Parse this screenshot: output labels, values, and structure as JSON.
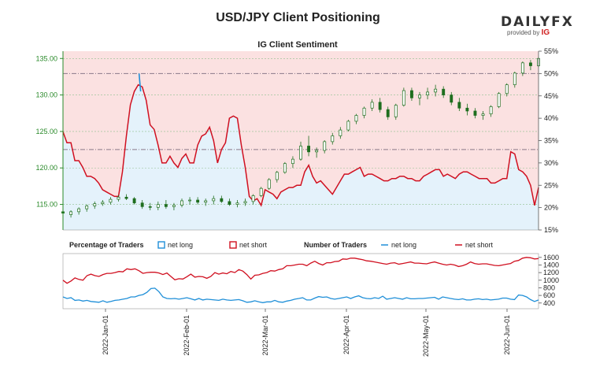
{
  "title": "USD/JPY Client Positioning",
  "subtitle": "IG Client Sentiment",
  "logo": {
    "main": "DAILYFX",
    "provided_by": "provided by",
    "brand": "IG"
  },
  "colors": {
    "net_long": "#1f8fd8",
    "net_short": "#d01020",
    "price": "#2a8a2a",
    "long_fill": "#e4f2fb",
    "short_fill": "#fbe1e1"
  },
  "legend": {
    "percentage_title": "Percentage of Traders",
    "number_title": "Number of Traders",
    "net_long": "net long",
    "net_short": "net short"
  },
  "chart_data": [
    {
      "type": "area",
      "name": "IG Client Sentiment",
      "price_axis": {
        "ticks": [
          115.0,
          120.0,
          125.0,
          130.0,
          135.0
        ],
        "labels": [
          "115.00",
          "120.00",
          "125.00",
          "130.00",
          "135.00"
        ],
        "range": [
          111.5,
          136.0
        ]
      },
      "pct_axis": {
        "ticks": [
          15,
          20,
          25,
          30,
          35,
          40,
          45,
          50,
          55
        ],
        "labels": [
          "15%",
          "20%",
          "25%",
          "30%",
          "35%",
          "40%",
          "45%",
          "50%",
          "55%"
        ],
        "range": [
          15,
          55
        ]
      },
      "x_labels": [
        "2022-Jan-01",
        "2022-Feb-01",
        "2022-Mar-01",
        "2022-Apr-01",
        "2022-May-01",
        "2022-Jun-01"
      ],
      "reference_lines": [
        50,
        33
      ],
      "net_short_pct": [
        37,
        34.5,
        34.5,
        30.5,
        30.5,
        29,
        27,
        27,
        26.5,
        25.5,
        24,
        23.5,
        23,
        22.5,
        22.5,
        28,
        36,
        43,
        46,
        47.5,
        47,
        44,
        38.5,
        37.5,
        34,
        30,
        30,
        31.5,
        30,
        29,
        31,
        32,
        30,
        30,
        34,
        36,
        36.5,
        38,
        35,
        30,
        33,
        34.5,
        40,
        40.5,
        40,
        34,
        29,
        22.5,
        21.5,
        22,
        20.5,
        24,
        23.5,
        23,
        22,
        23.5,
        24,
        24.5,
        24.5,
        25,
        25,
        28,
        29.5,
        27,
        25.5,
        26,
        25,
        24,
        23,
        24.5,
        26,
        27.5,
        27.5,
        28,
        28.5,
        29,
        27,
        27.5,
        27.5,
        27,
        26.5,
        26,
        26,
        26.5,
        26.5,
        27,
        27,
        26.5,
        26.5,
        26,
        26,
        27,
        27.5,
        28,
        28.5,
        28.5,
        27,
        27.5,
        27,
        26.5,
        27.5,
        28,
        28,
        27.5,
        27,
        26.5,
        26.5,
        26.5,
        25.5,
        25.5,
        26,
        26.5,
        26.5,
        32.5,
        32,
        28.5,
        28,
        27,
        25,
        20.5,
        24.5
      ],
      "price_ohlc": [
        {
          "i": 0,
          "o": 114.0,
          "h": 114.4,
          "l": 113.4,
          "c": 113.8
        },
        {
          "i": 2,
          "o": 113.6,
          "h": 114.2,
          "l": 113.2,
          "c": 114.0
        },
        {
          "i": 4,
          "o": 114.0,
          "h": 114.6,
          "l": 113.6,
          "c": 114.4
        },
        {
          "i": 6,
          "o": 114.4,
          "h": 115.0,
          "l": 114.0,
          "c": 114.8
        },
        {
          "i": 8,
          "o": 114.8,
          "h": 115.4,
          "l": 114.4,
          "c": 115.1
        },
        {
          "i": 10,
          "o": 115.1,
          "h": 115.6,
          "l": 114.8,
          "c": 115.3
        },
        {
          "i": 12,
          "o": 115.3,
          "h": 116.0,
          "l": 115.0,
          "c": 115.7
        },
        {
          "i": 14,
          "o": 115.7,
          "h": 116.3,
          "l": 115.4,
          "c": 116.0
        },
        {
          "i": 16,
          "o": 116.0,
          "h": 116.4,
          "l": 115.6,
          "c": 115.8
        },
        {
          "i": 18,
          "o": 115.8,
          "h": 116.0,
          "l": 115.0,
          "c": 115.2
        },
        {
          "i": 20,
          "o": 115.2,
          "h": 115.6,
          "l": 114.4,
          "c": 114.7
        },
        {
          "i": 22,
          "o": 114.7,
          "h": 115.2,
          "l": 114.2,
          "c": 114.6
        },
        {
          "i": 24,
          "o": 114.6,
          "h": 115.4,
          "l": 114.2,
          "c": 115.0
        },
        {
          "i": 26,
          "o": 115.0,
          "h": 115.6,
          "l": 114.4,
          "c": 114.7
        },
        {
          "i": 28,
          "o": 114.7,
          "h": 115.2,
          "l": 114.2,
          "c": 114.9
        },
        {
          "i": 30,
          "o": 114.9,
          "h": 115.8,
          "l": 114.6,
          "c": 115.5
        },
        {
          "i": 32,
          "o": 115.5,
          "h": 116.0,
          "l": 115.0,
          "c": 115.6
        },
        {
          "i": 34,
          "o": 115.6,
          "h": 116.0,
          "l": 115.0,
          "c": 115.3
        },
        {
          "i": 36,
          "o": 115.3,
          "h": 115.8,
          "l": 114.8,
          "c": 115.5
        },
        {
          "i": 38,
          "o": 115.5,
          "h": 116.2,
          "l": 115.0,
          "c": 115.8
        },
        {
          "i": 40,
          "o": 115.8,
          "h": 116.2,
          "l": 115.2,
          "c": 115.4
        },
        {
          "i": 42,
          "o": 115.4,
          "h": 115.8,
          "l": 114.8,
          "c": 115.0
        },
        {
          "i": 44,
          "o": 115.0,
          "h": 115.6,
          "l": 114.6,
          "c": 115.2
        },
        {
          "i": 46,
          "o": 115.2,
          "h": 115.8,
          "l": 114.8,
          "c": 115.4
        },
        {
          "i": 48,
          "o": 115.4,
          "h": 116.4,
          "l": 115.0,
          "c": 116.2
        },
        {
          "i": 50,
          "o": 116.2,
          "h": 117.4,
          "l": 116.0,
          "c": 117.2
        },
        {
          "i": 52,
          "o": 117.2,
          "h": 118.6,
          "l": 117.0,
          "c": 118.4
        },
        {
          "i": 54,
          "o": 118.4,
          "h": 119.6,
          "l": 118.0,
          "c": 119.4
        },
        {
          "i": 56,
          "o": 119.4,
          "h": 120.8,
          "l": 119.2,
          "c": 120.6
        },
        {
          "i": 58,
          "o": 120.6,
          "h": 121.6,
          "l": 120.0,
          "c": 121.2
        },
        {
          "i": 60,
          "o": 121.2,
          "h": 123.6,
          "l": 121.0,
          "c": 123.0
        },
        {
          "i": 62,
          "o": 123.0,
          "h": 124.4,
          "l": 121.6,
          "c": 122.2
        },
        {
          "i": 64,
          "o": 122.2,
          "h": 122.8,
          "l": 121.4,
          "c": 122.4
        },
        {
          "i": 66,
          "o": 122.4,
          "h": 123.8,
          "l": 122.0,
          "c": 123.6
        },
        {
          "i": 68,
          "o": 123.6,
          "h": 124.8,
          "l": 123.2,
          "c": 124.4
        },
        {
          "i": 70,
          "o": 124.4,
          "h": 125.6,
          "l": 124.0,
          "c": 125.2
        },
        {
          "i": 72,
          "o": 125.2,
          "h": 126.6,
          "l": 125.0,
          "c": 126.4
        },
        {
          "i": 74,
          "o": 126.4,
          "h": 127.4,
          "l": 126.0,
          "c": 127.2
        },
        {
          "i": 76,
          "o": 127.2,
          "h": 128.4,
          "l": 126.8,
          "c": 128.2
        },
        {
          "i": 78,
          "o": 128.2,
          "h": 129.4,
          "l": 127.8,
          "c": 129.0
        },
        {
          "i": 80,
          "o": 129.0,
          "h": 129.6,
          "l": 127.6,
          "c": 128.0
        },
        {
          "i": 82,
          "o": 128.0,
          "h": 128.4,
          "l": 126.6,
          "c": 127.0
        },
        {
          "i": 84,
          "o": 127.0,
          "h": 128.8,
          "l": 126.6,
          "c": 128.6
        },
        {
          "i": 86,
          "o": 128.6,
          "h": 131.0,
          "l": 128.4,
          "c": 130.6
        },
        {
          "i": 88,
          "o": 130.6,
          "h": 131.0,
          "l": 129.2,
          "c": 129.6
        },
        {
          "i": 90,
          "o": 129.6,
          "h": 130.4,
          "l": 128.6,
          "c": 130.0
        },
        {
          "i": 92,
          "o": 130.0,
          "h": 131.0,
          "l": 129.4,
          "c": 130.4
        },
        {
          "i": 94,
          "o": 130.4,
          "h": 131.4,
          "l": 129.8,
          "c": 130.8
        },
        {
          "i": 96,
          "o": 130.8,
          "h": 131.2,
          "l": 129.6,
          "c": 130.0
        },
        {
          "i": 98,
          "o": 130.0,
          "h": 130.4,
          "l": 128.6,
          "c": 129.0
        },
        {
          "i": 100,
          "o": 129.0,
          "h": 129.6,
          "l": 127.8,
          "c": 128.2
        },
        {
          "i": 102,
          "o": 128.2,
          "h": 128.8,
          "l": 127.2,
          "c": 127.8
        },
        {
          "i": 104,
          "o": 127.8,
          "h": 128.2,
          "l": 126.8,
          "c": 127.2
        },
        {
          "i": 106,
          "o": 127.2,
          "h": 127.8,
          "l": 126.6,
          "c": 127.4
        },
        {
          "i": 108,
          "o": 127.4,
          "h": 128.6,
          "l": 127.0,
          "c": 128.4
        },
        {
          "i": 110,
          "o": 128.4,
          "h": 130.4,
          "l": 128.2,
          "c": 130.2
        },
        {
          "i": 112,
          "o": 130.2,
          "h": 131.6,
          "l": 129.8,
          "c": 131.4
        },
        {
          "i": 114,
          "o": 131.4,
          "h": 133.2,
          "l": 131.0,
          "c": 133.0
        },
        {
          "i": 116,
          "o": 133.0,
          "h": 134.6,
          "l": 132.6,
          "c": 134.4
        },
        {
          "i": 118,
          "o": 134.4,
          "h": 134.8,
          "l": 133.4,
          "c": 134.0
        },
        {
          "i": 120,
          "o": 134.0,
          "h": 135.2,
          "l": 133.8,
          "c": 135.0
        }
      ]
    },
    {
      "type": "line",
      "name": "Number of Traders",
      "y_axis": {
        "ticks": [
          400,
          600,
          800,
          1000,
          1200,
          1400,
          1600
        ],
        "labels": [
          "400",
          "600",
          "800",
          "1000",
          "1200",
          "1400",
          "1600"
        ],
        "range": [
          250,
          1700
        ]
      },
      "series": [
        {
          "name": "net long",
          "values": [
            560,
            520,
            540,
            470,
            480,
            450,
            470,
            440,
            430,
            420,
            460,
            420,
            440,
            470,
            480,
            500,
            520,
            560,
            560,
            600,
            620,
            680,
            780,
            790,
            700,
            560,
            520,
            510,
            520,
            500,
            520,
            540,
            510,
            480,
            520,
            480,
            500,
            490,
            480,
            470,
            500,
            480,
            470,
            480,
            490,
            460,
            420,
            430,
            460,
            430,
            410,
            430,
            430,
            470,
            430,
            420,
            450,
            470,
            500,
            520,
            540,
            480,
            480,
            530,
            570,
            550,
            560,
            520,
            500,
            520,
            540,
            560,
            520,
            560,
            590,
            540,
            520,
            510,
            540,
            520,
            580,
            500,
            520,
            540,
            520,
            500,
            540,
            510,
            510,
            520,
            520,
            530,
            540,
            550,
            500,
            560,
            540,
            520,
            500,
            490,
            510,
            480,
            480,
            500,
            510,
            490,
            500,
            480,
            490,
            500,
            530,
            530,
            500,
            490,
            610,
            600,
            560,
            490,
            440,
            480
          ]
        },
        {
          "name": "net short",
          "values": [
            1000,
            920,
            980,
            1060,
            1020,
            1000,
            1120,
            1160,
            1120,
            1100,
            1150,
            1180,
            1180,
            1200,
            1230,
            1220,
            1300,
            1280,
            1300,
            1250,
            1180,
            1200,
            1210,
            1210,
            1190,
            1150,
            1190,
            1100,
            1010,
            1040,
            1030,
            1090,
            1160,
            1080,
            1100,
            1090,
            1050,
            1100,
            1200,
            1160,
            1190,
            1170,
            1230,
            1200,
            1280,
            1240,
            1150,
            1030,
            1130,
            1140,
            1180,
            1200,
            1250,
            1240,
            1280,
            1300,
            1380,
            1380,
            1400,
            1420,
            1420,
            1380,
            1450,
            1500,
            1440,
            1400,
            1460,
            1460,
            1490,
            1500,
            1560,
            1550,
            1580,
            1580,
            1560,
            1540,
            1510,
            1500,
            1480,
            1460,
            1440,
            1420,
            1450,
            1460,
            1420,
            1440,
            1460,
            1480,
            1450,
            1450,
            1440,
            1430,
            1460,
            1480,
            1450,
            1420,
            1400,
            1420,
            1400,
            1360,
            1380,
            1420,
            1480,
            1440,
            1420,
            1430,
            1430,
            1410,
            1390,
            1380,
            1400,
            1420,
            1440,
            1500,
            1520,
            1580,
            1600,
            1590,
            1560,
            1570
          ]
        }
      ]
    }
  ]
}
